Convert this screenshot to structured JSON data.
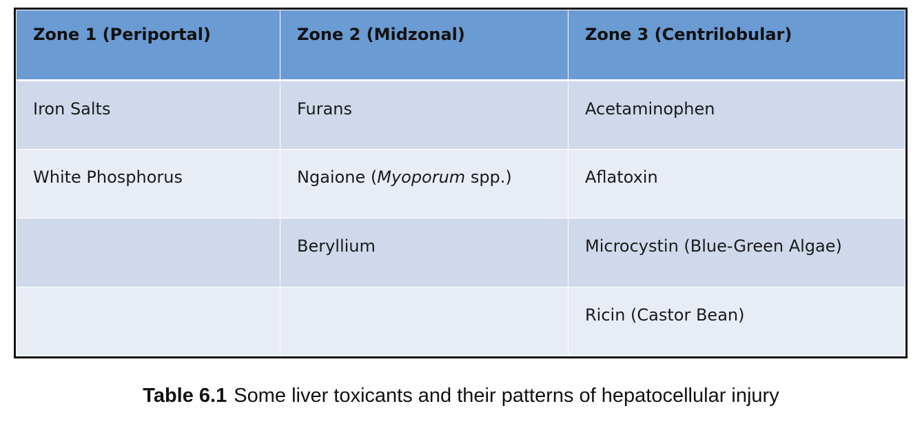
{
  "table": {
    "headers": [
      "Zone 1 (Periportal)",
      "Zone 2 (Midzonal)",
      "Zone 3 (Centrilobular)"
    ],
    "rows": [
      [
        "Iron Salts",
        "Furans",
        "Acetaminophen"
      ],
      [
        "White Phosphorus",
        "Ngaione (Myoporum spp.)",
        "Aflatoxin"
      ],
      [
        "",
        "Beryllium",
        "Microcystin (Blue-Green Algae)"
      ],
      [
        "",
        "",
        "Ricin (Castor Bean)"
      ]
    ],
    "ngaione_parts": {
      "prefix": "Ngaione (",
      "italic": "Myoporum",
      "suffix": " spp.)"
    }
  },
  "caption": {
    "label": "Table 6.1",
    "text": "Some liver toxicants and their patterns of hepatocellular injury"
  },
  "colors": {
    "header_bg": "#6a9bd3",
    "row_odd_bg": "#cfd9eb",
    "row_even_bg": "#e8ecf5",
    "border": "#111111"
  }
}
